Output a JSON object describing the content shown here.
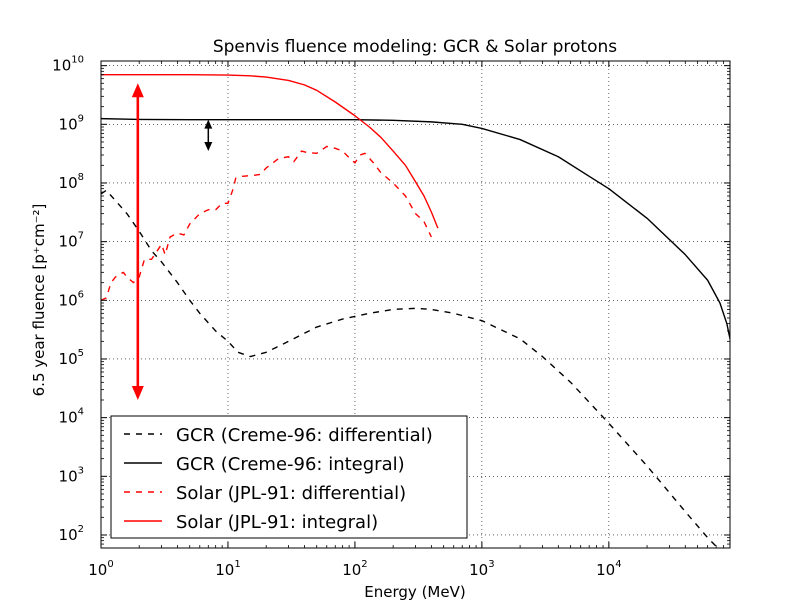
{
  "chart_data": {
    "type": "line",
    "title": "Spenvis fluence modeling: GCR & Solar protons",
    "xlabel": "Energy (MeV)",
    "ylabel": "6.5 year fluence [p⁺cm⁻²]",
    "xscale": "log",
    "yscale": "log",
    "xlim": [
      1,
      90000
    ],
    "ylim": [
      60,
      12000000000
    ],
    "x_ticks": [
      {
        "value": 1,
        "base": "10",
        "exp": "0"
      },
      {
        "value": 10,
        "base": "10",
        "exp": "1"
      },
      {
        "value": 100,
        "base": "10",
        "exp": "2"
      },
      {
        "value": 1000,
        "base": "10",
        "exp": "3"
      },
      {
        "value": 10000,
        "base": "10",
        "exp": "4"
      }
    ],
    "y_ticks": [
      {
        "value": 100,
        "base": "10",
        "exp": "2"
      },
      {
        "value": 1000,
        "base": "10",
        "exp": "3"
      },
      {
        "value": 10000,
        "base": "10",
        "exp": "4"
      },
      {
        "value": 100000,
        "base": "10",
        "exp": "5"
      },
      {
        "value": 1000000,
        "base": "10",
        "exp": "6"
      },
      {
        "value": 10000000,
        "base": "10",
        "exp": "7"
      },
      {
        "value": 100000000,
        "base": "10",
        "exp": "8"
      },
      {
        "value": 1000000000,
        "base": "10",
        "exp": "9"
      },
      {
        "value": 10000000000,
        "base": "10",
        "exp": "10"
      }
    ],
    "grid": true,
    "legend_position": "lower-left",
    "series": [
      {
        "name": "GCR (Creme-96: differential)",
        "color": "#000000",
        "style": "dashed",
        "points": [
          [
            1,
            65000000.0
          ],
          [
            1.1,
            75000000.0
          ],
          [
            1.3,
            50000000.0
          ],
          [
            1.6,
            30000000.0
          ],
          [
            2,
            15000000.0
          ],
          [
            2.5,
            7000000.0
          ],
          [
            3,
            4500000.0
          ],
          [
            4,
            2000000.0
          ],
          [
            5,
            1000000.0
          ],
          [
            6,
            600000.0
          ],
          [
            8,
            300000.0
          ],
          [
            10,
            200000.0
          ],
          [
            12,
            130000.0
          ],
          [
            15,
            110000.0
          ],
          [
            20,
            130000.0
          ],
          [
            30,
            200000.0
          ],
          [
            50,
            350000.0
          ],
          [
            80,
            480000.0
          ],
          [
            130,
            600000.0
          ],
          [
            200,
            700000.0
          ],
          [
            300,
            730000.0
          ],
          [
            400,
            700000.0
          ],
          [
            600,
            600000.0
          ],
          [
            1000,
            450000.0
          ],
          [
            2000,
            220000.0
          ],
          [
            3000,
            110000.0
          ],
          [
            5000,
            40000.0
          ],
          [
            10000,
            8000.0
          ],
          [
            20000,
            1500.0
          ],
          [
            40000,
            250
          ],
          [
            60000,
            90
          ],
          [
            75000,
            55
          ]
        ]
      },
      {
        "name": "GCR (Creme-96: integral)",
        "color": "#000000",
        "style": "solid",
        "points": [
          [
            1,
            1250000000.0
          ],
          [
            2,
            1210000000.0
          ],
          [
            5,
            1200000000.0
          ],
          [
            10,
            1200000000.0
          ],
          [
            30,
            1200000000.0
          ],
          [
            100,
            1200000000.0
          ],
          [
            200,
            1170000000.0
          ],
          [
            400,
            1100000000.0
          ],
          [
            700,
            1000000000.0
          ],
          [
            1000,
            850000000.0
          ],
          [
            2000,
            550000000.0
          ],
          [
            4000,
            280000000.0
          ],
          [
            7000,
            130000000.0
          ],
          [
            10000,
            80000000.0
          ],
          [
            20000,
            25000000.0
          ],
          [
            40000,
            6000000.0
          ],
          [
            60000,
            2200000.0
          ],
          [
            75000,
            900000.0
          ],
          [
            85000,
            400000.0
          ],
          [
            90000,
            220000.0
          ]
        ]
      },
      {
        "name": "Solar (JPL-91: differential)",
        "color": "#ff0000",
        "style": "dashed",
        "points": [
          [
            1,
            1000000.0
          ],
          [
            1.1,
            1100000.0
          ],
          [
            1.2,
            2000000.0
          ],
          [
            1.3,
            2500000.0
          ],
          [
            1.5,
            3000000.0
          ],
          [
            1.6,
            2500000.0
          ],
          [
            1.8,
            2000000.0
          ],
          [
            2,
            2500000.0
          ],
          [
            2.2,
            5000000.0
          ],
          [
            2.5,
            5000000.0
          ],
          [
            3,
            9000000.0
          ],
          [
            3.2,
            6000000.0
          ],
          [
            3.5,
            12000000.0
          ],
          [
            4,
            14000000.0
          ],
          [
            4.5,
            13000000.0
          ],
          [
            5,
            20000000.0
          ],
          [
            6,
            30000000.0
          ],
          [
            7,
            35000000.0
          ],
          [
            8,
            35000000.0
          ],
          [
            9,
            45000000.0
          ],
          [
            10,
            45000000.0
          ],
          [
            11,
            80000000.0
          ],
          [
            11.5,
            120000000.0
          ],
          [
            13,
            130000000.0
          ],
          [
            16,
            135000000.0
          ],
          [
            18,
            140000000.0
          ],
          [
            20,
            180000000.0
          ],
          [
            25,
            260000000.0
          ],
          [
            30,
            280000000.0
          ],
          [
            33,
            230000000.0
          ],
          [
            38,
            350000000.0
          ],
          [
            42,
            330000000.0
          ],
          [
            50,
            320000000.0
          ],
          [
            60,
            420000000.0
          ],
          [
            70,
            390000000.0
          ],
          [
            80,
            350000000.0
          ],
          [
            90,
            270000000.0
          ],
          [
            100,
            220000000.0
          ],
          [
            110,
            300000000.0
          ],
          [
            120,
            320000000.0
          ],
          [
            140,
            220000000.0
          ],
          [
            160,
            150000000.0
          ],
          [
            200,
            100000000.0
          ],
          [
            250,
            60000000.0
          ],
          [
            300,
            30000000.0
          ],
          [
            350,
            22000000.0
          ],
          [
            400,
            12000000.0
          ]
        ]
      },
      {
        "name": "Solar (JPL-91: integral)",
        "color": "#ff0000",
        "style": "solid",
        "points": [
          [
            1,
            7000000000.0
          ],
          [
            5,
            7000000000.0
          ],
          [
            10,
            6900000000.0
          ],
          [
            15,
            6700000000.0
          ],
          [
            20,
            6400000000.0
          ],
          [
            30,
            5600000000.0
          ],
          [
            40,
            4700000000.0
          ],
          [
            50,
            3800000000.0
          ],
          [
            70,
            2400000000.0
          ],
          [
            100,
            1400000000.0
          ],
          [
            130,
            900000000.0
          ],
          [
            160,
            600000000.0
          ],
          [
            200,
            350000000.0
          ],
          [
            250,
            200000000.0
          ],
          [
            300,
            105000000.0
          ],
          [
            350,
            60000000.0
          ],
          [
            400,
            32000000.0
          ],
          [
            450,
            17000000.0
          ]
        ]
      }
    ],
    "annotations": [
      {
        "type": "double-arrow",
        "color": "#ff0000",
        "x": 1.95,
        "y_from": 20000.0,
        "y_to": 5000000000.0
      },
      {
        "type": "double-arrow",
        "color": "#000000",
        "x": 7,
        "y_from": 350000000.0,
        "y_to": 1200000000.0
      }
    ]
  }
}
